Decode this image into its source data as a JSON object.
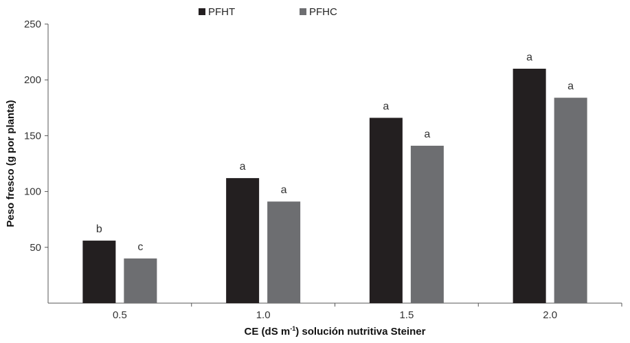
{
  "chart_data": {
    "type": "bar",
    "categories": [
      "0.5",
      "1.0",
      "1.5",
      "2.0"
    ],
    "series": [
      {
        "name": "PFHT",
        "color": "#231f20",
        "values": [
          56,
          112,
          166,
          210
        ],
        "labels": [
          "b",
          "a",
          "a",
          "a"
        ]
      },
      {
        "name": "PFHC",
        "color": "#6d6e71",
        "values": [
          40,
          91,
          141,
          184
        ],
        "labels": [
          "c",
          "a",
          "a",
          "a"
        ]
      }
    ],
    "title": "",
    "xlabel": {
      "before": "CE (dS m",
      "superscript": "-1",
      "after": ") solución nutritiva Steiner"
    },
    "ylabel": "Peso fresco (g por planta)",
    "ylim": [
      0,
      250
    ],
    "yticks": [
      "50",
      "100",
      "150",
      "200",
      "250"
    ],
    "legend_position": "top-center",
    "grid": false
  }
}
